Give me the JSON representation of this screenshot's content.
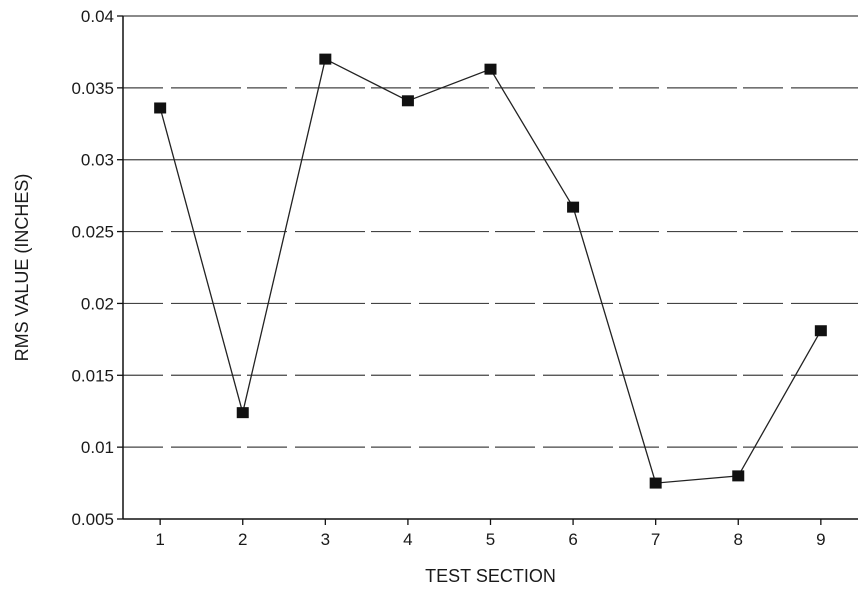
{
  "chart_data": {
    "type": "line",
    "title": "",
    "xlabel": "TEST SECTION",
    "ylabel": "RMS VALUE (INCHES)",
    "x": [
      1,
      2,
      3,
      4,
      5,
      6,
      7,
      8,
      9
    ],
    "x_tick_labels": [
      "1",
      "2",
      "3",
      "4",
      "5",
      "6",
      "7",
      "8",
      "9"
    ],
    "y_tick_values": [
      0.005,
      0.01,
      0.015,
      0.02,
      0.025,
      0.03,
      0.035,
      0.04
    ],
    "y_tick_labels": [
      "0.005",
      "0.01",
      "0.015",
      "0.02",
      "0.025",
      "0.03",
      "0.035",
      "0.04"
    ],
    "ylim": [
      0.005,
      0.04
    ],
    "xlim": [
      0.55,
      9.45
    ],
    "series": [
      {
        "values": [
          0.0336,
          0.0124,
          0.037,
          0.0341,
          0.0363,
          0.0267,
          0.0075,
          0.008,
          0.0181
        ]
      }
    ],
    "grid": "horizontal dashed",
    "legend": "none",
    "colors": {
      "line": "#222222",
      "marker": "#111111",
      "grid": "#444444",
      "axis": "#111111"
    }
  }
}
